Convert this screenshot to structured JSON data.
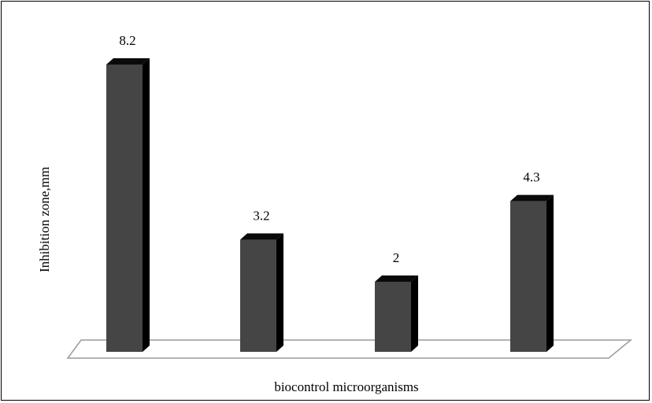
{
  "chart_data": {
    "type": "bar",
    "title": "",
    "xlabel": "biocontrol microorganisms",
    "ylabel": "Inhibition zone,mm",
    "categories": [
      "",
      "",
      "",
      ""
    ],
    "values": [
      8.2,
      3.2,
      2,
      4.3
    ],
    "data_labels": [
      "8.2",
      "3.2",
      "2",
      "4.3"
    ],
    "ylim": [
      0,
      8.2
    ],
    "grid": false,
    "legend": "none",
    "bar_style": "3d",
    "colors": {
      "bar_front": "#454545",
      "bar_side": "#000000",
      "bar_top": "#0a0a0a",
      "floor_stroke": "#9a9a9a"
    }
  }
}
